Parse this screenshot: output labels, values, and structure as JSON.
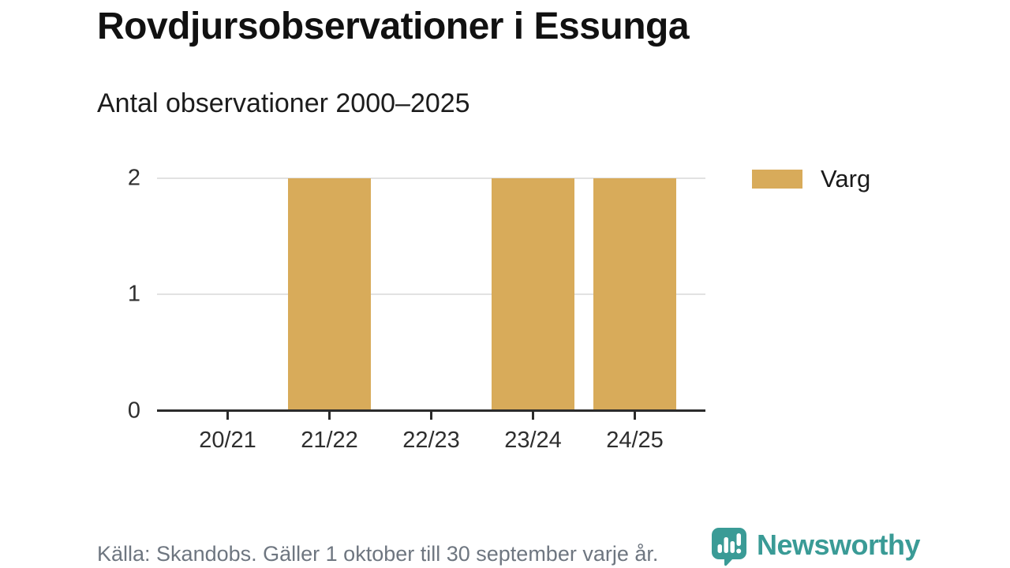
{
  "header": {
    "title": "Rovdjursobservationer i Essunga",
    "subtitle": "Antal observationer 2000–2025"
  },
  "chart_data": {
    "type": "bar",
    "title": "Rovdjursobservationer i Essunga",
    "subtitle": "Antal observationer 2000–2025",
    "categories": [
      "20/21",
      "21/22",
      "22/23",
      "23/24",
      "24/25"
    ],
    "series": [
      {
        "name": "Varg",
        "color": "#d8ab5a",
        "values": [
          0,
          2,
          0,
          2,
          2
        ]
      }
    ],
    "xlabel": "",
    "ylabel": "",
    "yticks": [
      0,
      1,
      2
    ],
    "ylim": [
      0,
      2
    ],
    "grid": true,
    "legend_position": "top-right"
  },
  "legend": {
    "items": [
      {
        "label": "Varg",
        "color": "#d8ab5a"
      }
    ]
  },
  "footer": {
    "source": "Källa: Skandobs. Gäller 1 oktober till 30 september varje år.",
    "brand": {
      "name": "Newsworthy",
      "color": "#3a9b96",
      "icon": "newsworthy-logo-icon"
    }
  },
  "colors": {
    "bar": "#d8ab5a",
    "axis": "#2b2b2b",
    "gridline": "#e2e2e2",
    "text_primary": "#111111",
    "text_muted": "#6e7680",
    "brand_teal": "#3a9b96"
  }
}
